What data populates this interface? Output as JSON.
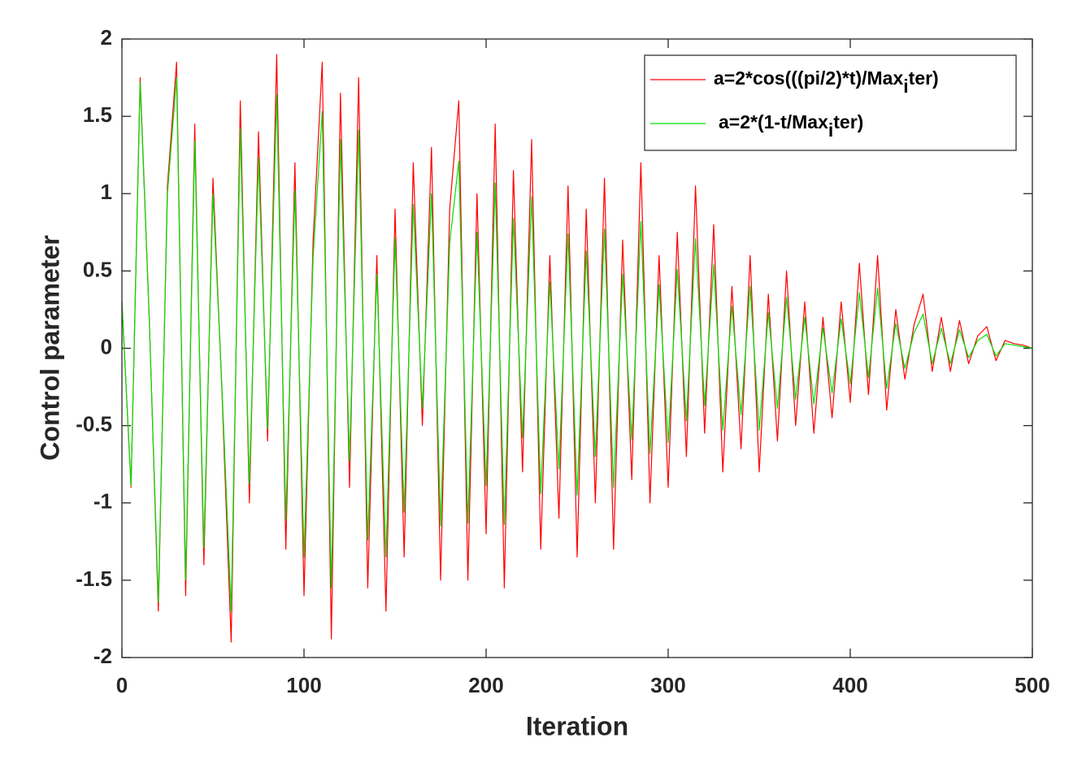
{
  "chart_data": {
    "type": "line",
    "xlabel": "Iteration",
    "ylabel": "Control parameter",
    "x": [
      0,
      5,
      10,
      15,
      20,
      25,
      30,
      35,
      40,
      45,
      50,
      55,
      60,
      65,
      70,
      75,
      80,
      85,
      90,
      95,
      100,
      105,
      110,
      115,
      120,
      125,
      130,
      135,
      140,
      145,
      150,
      155,
      160,
      165,
      170,
      175,
      180,
      185,
      190,
      195,
      200,
      205,
      210,
      215,
      220,
      225,
      230,
      235,
      240,
      245,
      250,
      255,
      260,
      265,
      270,
      275,
      280,
      285,
      290,
      295,
      300,
      305,
      310,
      315,
      320,
      325,
      330,
      335,
      340,
      345,
      350,
      355,
      360,
      365,
      370,
      375,
      380,
      385,
      390,
      395,
      400,
      405,
      410,
      415,
      420,
      425,
      430,
      435,
      440,
      445,
      450,
      455,
      460,
      465,
      470,
      475,
      480,
      485,
      490,
      495,
      500
    ],
    "series": [
      {
        "name": "a=2*cos(((pi/2)*t)/Max_iter)",
        "color": "#ff0000",
        "values": [
          0.3,
          -0.9,
          1.75,
          0.2,
          -1.7,
          1.05,
          1.85,
          -1.6,
          1.45,
          -1.4,
          1.1,
          -0.3,
          -1.9,
          1.6,
          -1.0,
          1.4,
          -0.6,
          1.9,
          -1.3,
          1.2,
          -1.6,
          0.7,
          1.85,
          -1.88,
          1.65,
          -0.9,
          1.75,
          -1.55,
          0.6,
          -1.7,
          0.9,
          -1.35,
          1.2,
          -0.5,
          1.3,
          -1.5,
          0.9,
          1.6,
          -1.5,
          1.0,
          -1.2,
          1.45,
          -1.55,
          1.15,
          -0.8,
          1.35,
          -1.3,
          0.6,
          -1.1,
          1.05,
          -1.35,
          0.9,
          -1.0,
          1.1,
          -1.3,
          0.7,
          -0.85,
          1.2,
          -1.0,
          0.6,
          -0.9,
          0.75,
          -0.7,
          1.05,
          -0.55,
          0.8,
          -0.8,
          0.4,
          -0.65,
          0.6,
          -0.8,
          0.35,
          -0.6,
          0.5,
          -0.5,
          0.3,
          -0.55,
          0.2,
          -0.45,
          0.3,
          -0.35,
          0.55,
          -0.3,
          0.6,
          -0.4,
          0.25,
          -0.2,
          0.15,
          0.35,
          -0.15,
          0.2,
          -0.15,
          0.18,
          -0.1,
          0.08,
          0.14,
          -0.08,
          0.05,
          0.03,
          0.02,
          0
        ]
      },
      {
        "name": "a=2*(1-t/Max_iter)",
        "color": "#00e000",
        "values": [
          0.3,
          -0.89,
          1.72,
          0.19,
          -1.64,
          1.0,
          1.75,
          -1.5,
          1.34,
          -1.29,
          1.0,
          -0.27,
          -1.7,
          1.42,
          -0.88,
          1.23,
          -0.52,
          1.64,
          -1.11,
          1.02,
          -1.35,
          0.59,
          1.53,
          -1.55,
          1.35,
          -0.73,
          1.41,
          -1.24,
          0.48,
          -1.35,
          0.71,
          -1.06,
          0.93,
          -0.39,
          1.0,
          -1.15,
          0.68,
          1.21,
          -1.13,
          0.75,
          -0.89,
          1.07,
          -1.14,
          0.84,
          -0.58,
          0.98,
          -0.94,
          0.43,
          -0.78,
          0.74,
          -0.95,
          0.63,
          -0.7,
          0.77,
          -0.9,
          0.48,
          -0.59,
          0.82,
          -0.68,
          0.41,
          -0.61,
          0.51,
          -0.47,
          0.71,
          -0.37,
          0.54,
          -0.53,
          0.27,
          -0.43,
          0.4,
          -0.53,
          0.23,
          -0.39,
          0.33,
          -0.33,
          0.2,
          -0.36,
          0.13,
          -0.29,
          0.19,
          -0.23,
          0.36,
          -0.19,
          0.39,
          -0.26,
          0.16,
          -0.13,
          0.1,
          0.22,
          -0.1,
          0.13,
          -0.1,
          0.12,
          -0.06,
          0.05,
          0.09,
          -0.05,
          0.03,
          0.02,
          0.01,
          0
        ]
      }
    ],
    "xlim": [
      0,
      500
    ],
    "xticks": [
      0,
      100,
      200,
      300,
      400,
      500
    ],
    "ylim": [
      -2,
      2
    ],
    "yticks": [
      -2,
      -1.5,
      -1,
      -0.5,
      0,
      0.5,
      1,
      1.5,
      2
    ],
    "grid": false,
    "legend": "upper right"
  }
}
